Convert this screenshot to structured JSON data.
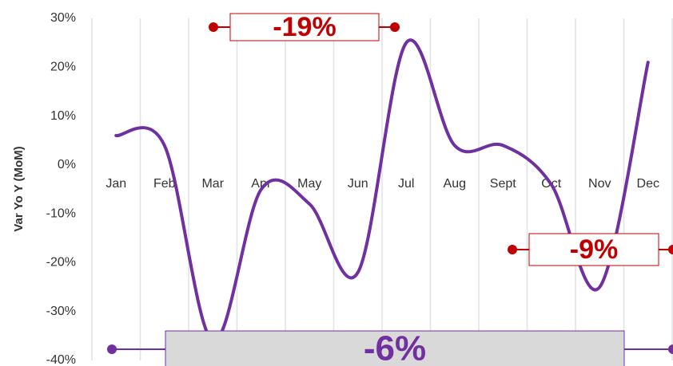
{
  "chart_data": {
    "type": "line",
    "y_label": "Var Yo Y (MoM)",
    "categories": [
      "Jan",
      "Feb",
      "Mar",
      "Apr",
      "May",
      "Jun",
      "Jul",
      "Aug",
      "Sept",
      "Oct",
      "Nov",
      "Dec"
    ],
    "series": [
      {
        "name": "Var Yo Y",
        "color": "#7030a0",
        "values": [
          6,
          4,
          -36,
          -5,
          -8,
          -22,
          25,
          4,
          4,
          -4,
          -25,
          21
        ]
      }
    ],
    "ylim": [
      -40,
      30
    ],
    "yticks": [
      {
        "value": -40,
        "label": "-40%"
      },
      {
        "value": -30,
        "label": "-30%"
      },
      {
        "value": -20,
        "label": "-20%"
      },
      {
        "value": -10,
        "label": "-10%"
      },
      {
        "value": 0,
        "label": "0%"
      },
      {
        "value": 10,
        "label": "10%"
      },
      {
        "value": 20,
        "label": "20%"
      },
      {
        "value": 30,
        "label": "30%"
      }
    ],
    "grid": true,
    "annotations": [
      {
        "text": "-19%",
        "color": "#c00000"
      },
      {
        "text": "-9%",
        "color": "#c00000"
      },
      {
        "text": "-6%",
        "color": "#7030a0"
      }
    ]
  }
}
